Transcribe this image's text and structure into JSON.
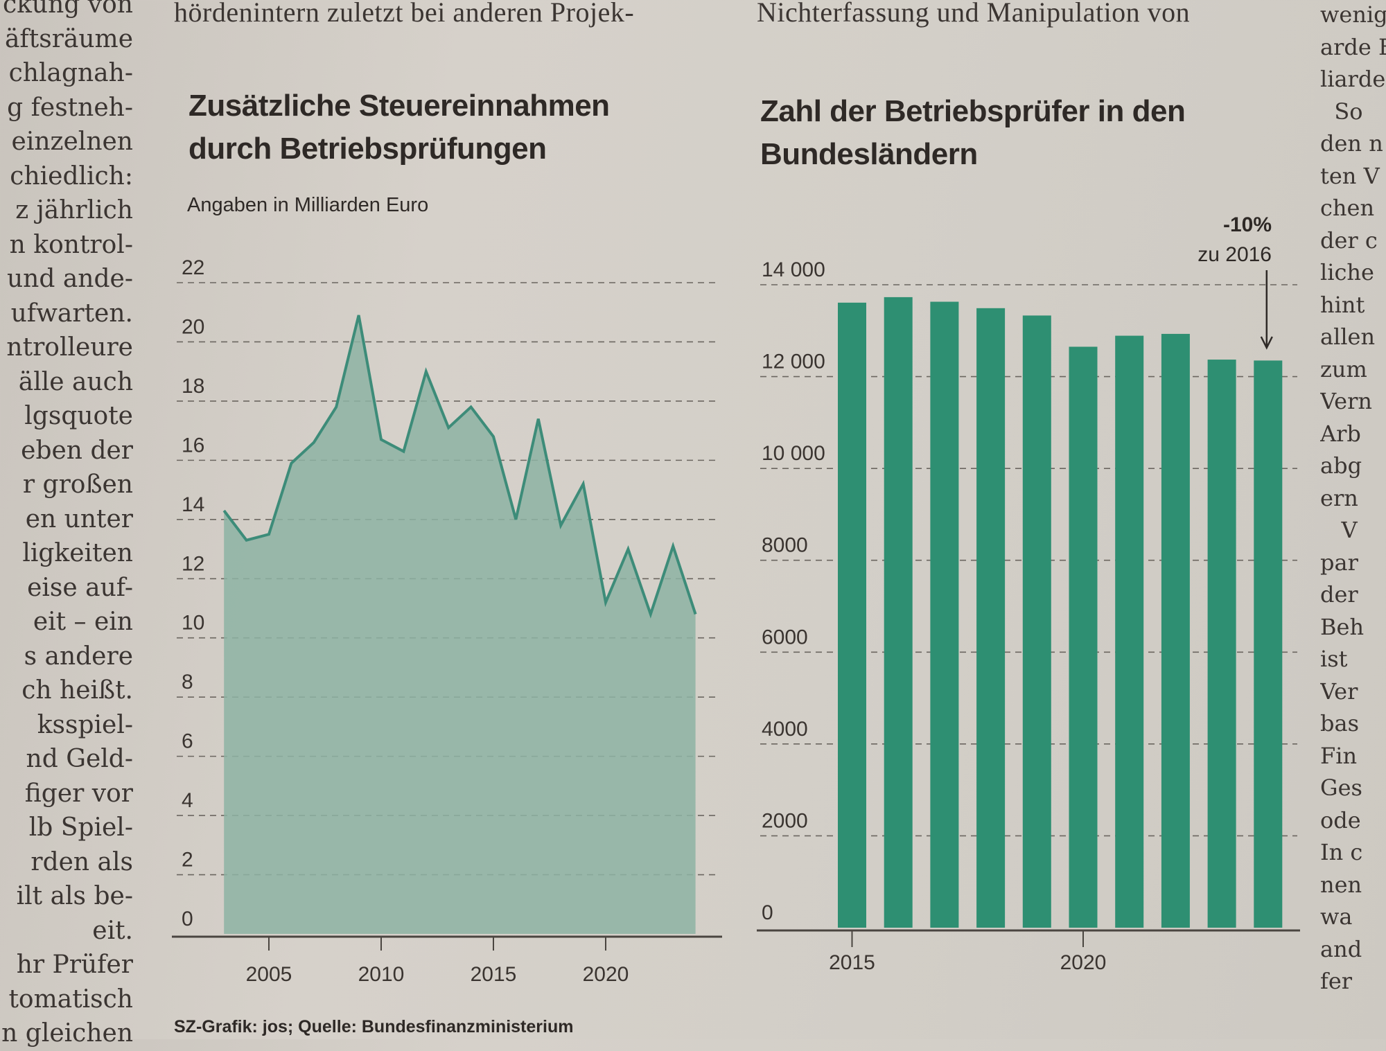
{
  "article": {
    "left_column_lines": [
      "ckung von",
      "äftsräume",
      "chlagnah-",
      "g festneh-",
      "einzelnen",
      "chiedlich:",
      "z jährlich",
      "n kontrol-",
      "und ande-",
      "ufwarten.",
      "ntrolleure",
      "älle auch",
      "lgsquote",
      "eben der",
      "r großen",
      "en unter",
      "ligkeiten",
      "eise auf-",
      "eit – ein",
      "s andere",
      "ch heißt.",
      "ksspiel-",
      "nd Geld-",
      "figer vor",
      "lb Spiel-",
      "rden als",
      "ilt als be-",
      "eit.",
      "hr Prüfer",
      "tomatisch",
      "n gleichen"
    ],
    "right_column_lines": [
      "wenig",
      "arde E",
      "liarde",
      "  So",
      "den n",
      "ten V",
      "chen",
      "der c",
      "liche",
      "hint",
      "allen",
      "zum",
      "Vern",
      "Arb",
      "abg",
      "ern",
      "   V",
      "par",
      "der",
      "Beh",
      "ist",
      "Ver",
      "bas",
      "Fin",
      "Ges",
      "ode",
      "In c",
      "nen",
      "wa",
      "and",
      "fer"
    ],
    "top_line_middle": "hördenintern zuletzt bei anderen Projek-",
    "top_line_right": "Nichterfassung  und  Manipulation  von"
  },
  "footer": "SZ-Grafik: jos; Quelle: Bundesfinanzministerium",
  "colors": {
    "line": "#3d8c79",
    "area": "#8db3a3",
    "bar": "#2e8f72",
    "grid": "#6b6660",
    "axis": "#4a4540"
  },
  "chart_data": [
    {
      "type": "area",
      "title_lines": [
        "Zusätzliche Steuereinnahmen",
        "durch Betriebsprüfungen"
      ],
      "subtitle": "Angaben in Milliarden Euro",
      "xlabel": "",
      "ylabel": "Milliarden Euro",
      "x": [
        2003,
        2004,
        2005,
        2006,
        2007,
        2008,
        2009,
        2010,
        2011,
        2012,
        2013,
        2014,
        2015,
        2016,
        2017,
        2018,
        2019,
        2020,
        2021,
        2022,
        2023,
        2024
      ],
      "values": [
        14.3,
        13.3,
        13.5,
        15.9,
        16.6,
        17.8,
        20.9,
        16.7,
        16.3,
        19.0,
        17.1,
        17.8,
        16.8,
        14.0,
        17.4,
        13.8,
        15.2,
        11.2,
        13.0,
        10.8,
        13.1,
        10.8
      ],
      "ylim": [
        0,
        22
      ],
      "yticks": [
        "0",
        "2",
        "4",
        "6",
        "8",
        "10",
        "12",
        "14",
        "16",
        "18",
        "20",
        "22"
      ],
      "xticks": [
        "2005",
        "2010",
        "2015",
        "2020"
      ],
      "grid": true
    },
    {
      "type": "bar",
      "title_lines": [
        "Zahl der Betriebsprüfer in den",
        "Bundesländern"
      ],
      "categories": [
        "2015",
        "2016",
        "2017",
        "2018",
        "2019",
        "2020",
        "2021",
        "2022",
        "2023",
        "2024"
      ],
      "values": [
        13610,
        13730,
        13630,
        13490,
        13330,
        12650,
        12890,
        12930,
        12370,
        12350
      ],
      "ylim": [
        0,
        14000
      ],
      "yticks": [
        "0",
        "2000",
        "4000",
        "6000",
        "8000",
        "10 000",
        "12 000",
        "14 000"
      ],
      "xticks": [
        "2015",
        "2020"
      ],
      "grid": true,
      "annotation": {
        "value": "-10%",
        "label": "zu 2016",
        "target": "2024"
      }
    }
  ]
}
